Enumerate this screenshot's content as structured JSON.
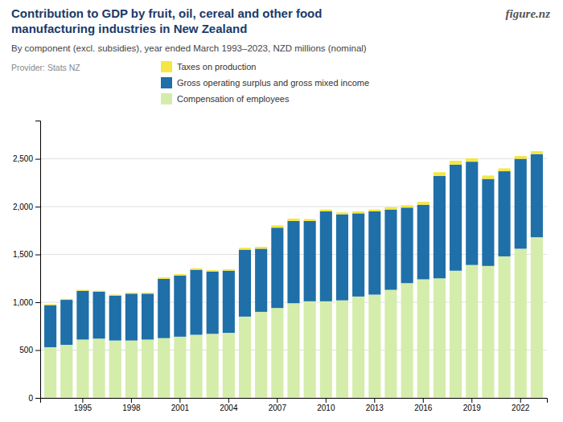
{
  "chart_data": {
    "type": "bar",
    "stacked": true,
    "title": [
      "Contribution to GDP by fruit, oil, cereal and other food",
      "manufacturing industries in New Zealand"
    ],
    "subtitle": "By component (excl. subsidies), year ended March 1993–2023, NZD millions (nominal)",
    "annotations": [
      "Provider: Stats NZ",
      "figure.nz"
    ],
    "categories": [
      null,
      null,
      "1995",
      null,
      null,
      "1998",
      null,
      null,
      "2001",
      null,
      null,
      "2004",
      null,
      null,
      "2007",
      null,
      null,
      "2010",
      null,
      null,
      "2013",
      null,
      null,
      "2016",
      null,
      null,
      "2019",
      null,
      null,
      "2022",
      null
    ],
    "series": [
      {
        "name": "Compensation of employees",
        "color": "#d4edaa",
        "values": [
          530,
          555,
          610,
          620,
          600,
          600,
          610,
          625,
          640,
          660,
          670,
          680,
          850,
          900,
          940,
          990,
          1010,
          1010,
          1020,
          1060,
          1080,
          1130,
          1200,
          1240,
          1250,
          1330,
          1390,
          1380,
          1480,
          1560,
          1680
        ]
      },
      {
        "name": "Gross operating surplus and gross mixed income",
        "color": "#1f6fa8",
        "values": [
          440,
          470,
          510,
          490,
          470,
          490,
          480,
          620,
          640,
          680,
          650,
          650,
          700,
          660,
          840,
          860,
          840,
          940,
          900,
          870,
          870,
          840,
          790,
          780,
          1070,
          1110,
          1080,
          910,
          890,
          940,
          870
        ]
      },
      {
        "name": "Taxes on production",
        "color": "#f5e642",
        "values": [
          10,
          10,
          10,
          10,
          10,
          10,
          10,
          15,
          15,
          15,
          15,
          15,
          20,
          20,
          25,
          25,
          20,
          20,
          20,
          20,
          20,
          25,
          25,
          30,
          40,
          40,
          35,
          35,
          30,
          30,
          30
        ]
      }
    ],
    "ylim": [
      0,
      2900
    ],
    "yticks": [
      0,
      500,
      {
        "value": 1000,
        "label": "1,000"
      },
      {
        "value": 1500,
        "label": "1,500"
      },
      {
        "value": 2000,
        "label": "2,000"
      },
      {
        "value": 2500,
        "label": "2,500"
      }
    ],
    "grid": true,
    "legend": "top"
  }
}
